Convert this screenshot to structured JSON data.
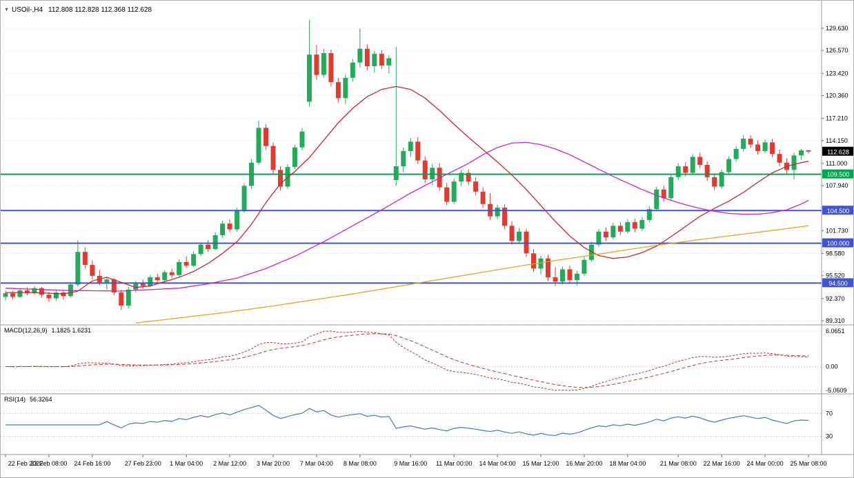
{
  "window": {
    "dropdown_icon": "▼",
    "symbol_label": "USOil-,H4",
    "ohlc_label": "112.808 112.828 112.368 112.628"
  },
  "chart_data": {
    "type": "candlestick",
    "symbol": "USOil-",
    "timeframe": "H4",
    "current_candle": {
      "open": 112.808,
      "high": 112.828,
      "low": 112.368,
      "close": 112.628
    },
    "price_axis": {
      "min_visible": 88.74,
      "max_visible": 133.43,
      "ticks": [
        {
          "value": 129.63,
          "label": "129.630"
        },
        {
          "value": 126.57,
          "label": "126.570"
        },
        {
          "value": 123.42,
          "label": "123.420"
        },
        {
          "value": 120.36,
          "label": "120.360"
        },
        {
          "value": 117.21,
          "label": "117.210"
        },
        {
          "value": 114.15,
          "label": "114.150"
        },
        {
          "value": 111.0,
          "label": "111.000"
        },
        {
          "value": 107.94,
          "label": "107.940"
        },
        {
          "value": 104.88,
          "label": ""
        },
        {
          "value": 101.73,
          "label": "101.730"
        },
        {
          "value": 98.58,
          "label": "98.580"
        },
        {
          "value": 95.52,
          "label": "95.520"
        },
        {
          "value": 92.37,
          "label": "92.370"
        },
        {
          "value": 89.31,
          "label": "89.310"
        }
      ]
    },
    "hlines": [
      {
        "value": 109.5,
        "label": "109.500",
        "color": "#00a651",
        "name": "support-line-109500"
      },
      {
        "value": 104.5,
        "label": "104.500",
        "color": "#4053d3",
        "name": "support-line-104500"
      },
      {
        "value": 100.0,
        "label": "100.000",
        "color": "#4053d3",
        "name": "support-line-100000"
      },
      {
        "value": 94.5,
        "label": "94.500",
        "color": "#4053d3",
        "name": "support-line-94500"
      }
    ],
    "current_price": {
      "value": 112.628,
      "label": "112.628",
      "color": "#000000"
    },
    "candles": [
      [
        92.6,
        93.5,
        92.1,
        93.1
      ],
      [
        93.1,
        93.4,
        92.3,
        92.6
      ],
      [
        92.6,
        93.8,
        92.4,
        93.5
      ],
      [
        93.5,
        93.9,
        92.8,
        93.1
      ],
      [
        93.1,
        94.1,
        92.9,
        93.8
      ],
      [
        93.8,
        94.0,
        92.5,
        92.9
      ],
      [
        92.9,
        93.3,
        91.9,
        92.4
      ],
      [
        92.4,
        93.6,
        92.1,
        93.2
      ],
      [
        93.2,
        93.5,
        92.2,
        92.7
      ],
      [
        92.7,
        94.6,
        92.5,
        94.3
      ],
      [
        94.3,
        100.4,
        94.0,
        98.8
      ],
      [
        98.8,
        99.4,
        96.5,
        97.0
      ],
      [
        97.0,
        97.6,
        95.0,
        95.5
      ],
      [
        95.5,
        96.3,
        94.2,
        94.6
      ],
      [
        94.6,
        95.4,
        93.6,
        95.0
      ],
      [
        95.0,
        95.2,
        92.8,
        93.2
      ],
      [
        93.2,
        93.6,
        90.8,
        91.4
      ],
      [
        91.4,
        94.0,
        91.0,
        93.6
      ],
      [
        93.6,
        94.8,
        93.2,
        94.4
      ],
      [
        94.4,
        95.0,
        93.7,
        94.1
      ],
      [
        94.1,
        95.6,
        93.9,
        95.3
      ],
      [
        95.3,
        95.8,
        94.5,
        94.9
      ],
      [
        94.9,
        96.3,
        94.6,
        96.0
      ],
      [
        96.0,
        96.5,
        95.2,
        95.6
      ],
      [
        95.6,
        97.8,
        95.4,
        97.4
      ],
      [
        97.4,
        98.2,
        96.6,
        96.9
      ],
      [
        96.9,
        98.9,
        96.7,
        98.5
      ],
      [
        98.5,
        100.1,
        98.2,
        99.8
      ],
      [
        99.8,
        100.4,
        98.8,
        99.2
      ],
      [
        99.2,
        101.5,
        99.0,
        101.1
      ],
      [
        101.1,
        103.1,
        100.7,
        102.7
      ],
      [
        102.7,
        103.3,
        101.5,
        101.9
      ],
      [
        101.9,
        104.9,
        101.6,
        104.5
      ],
      [
        104.5,
        108.3,
        104.2,
        107.9
      ],
      [
        107.9,
        111.6,
        107.5,
        111.1
      ],
      [
        111.1,
        116.9,
        110.8,
        115.9
      ],
      [
        115.9,
        116.4,
        112.9,
        113.4
      ],
      [
        113.4,
        113.9,
        109.6,
        110.1
      ],
      [
        110.1,
        110.6,
        107.3,
        107.8
      ],
      [
        107.8,
        110.9,
        107.5,
        110.5
      ],
      [
        110.5,
        113.6,
        110.2,
        113.2
      ],
      [
        113.2,
        115.9,
        112.8,
        115.4
      ],
      [
        119.5,
        130.8,
        118.8,
        126.0
      ],
      [
        126.0,
        127.3,
        122.5,
        123.2
      ],
      [
        123.2,
        126.8,
        122.8,
        126.2
      ],
      [
        126.2,
        126.7,
        121.6,
        122.2
      ],
      [
        122.2,
        122.8,
        119.4,
        120.0
      ],
      [
        120.0,
        123.3,
        119.2,
        122.8
      ],
      [
        122.8,
        125.4,
        122.3,
        124.9
      ],
      [
        124.9,
        129.6,
        124.2,
        126.8
      ],
      [
        126.8,
        127.4,
        123.8,
        124.4
      ],
      [
        124.4,
        126.5,
        123.5,
        126.1
      ],
      [
        126.1,
        126.6,
        124.0,
        124.5
      ],
      [
        124.5,
        125.9,
        123.4,
        125.5
      ],
      [
        108.7,
        127.1,
        107.9,
        110.6
      ],
      [
        110.6,
        113.2,
        109.8,
        112.7
      ],
      [
        112.7,
        114.5,
        111.9,
        114.0
      ],
      [
        114.0,
        114.6,
        110.9,
        111.4
      ],
      [
        111.4,
        112.0,
        108.3,
        108.8
      ],
      [
        108.8,
        110.9,
        108.0,
        110.4
      ],
      [
        110.4,
        111.0,
        107.2,
        107.7
      ],
      [
        107.7,
        108.3,
        105.2,
        105.7
      ],
      [
        105.7,
        108.9,
        105.4,
        108.5
      ],
      [
        108.5,
        110.1,
        107.9,
        109.7
      ],
      [
        109.7,
        110.2,
        108.0,
        108.5
      ],
      [
        108.5,
        109.1,
        106.6,
        107.1
      ],
      [
        107.1,
        107.7,
        104.9,
        105.4
      ],
      [
        105.4,
        106.9,
        103.2,
        103.7
      ],
      [
        103.7,
        105.3,
        103.3,
        104.9
      ],
      [
        104.9,
        105.4,
        101.9,
        102.4
      ],
      [
        102.4,
        103.0,
        99.8,
        100.3
      ],
      [
        100.3,
        102.1,
        99.9,
        101.6
      ],
      [
        101.6,
        102.0,
        98.1,
        98.6
      ],
      [
        98.6,
        99.2,
        96.0,
        96.5
      ],
      [
        96.5,
        98.3,
        95.7,
        97.9
      ],
      [
        97.9,
        98.4,
        94.8,
        95.3
      ],
      [
        95.3,
        96.7,
        94.1,
        94.7
      ],
      [
        94.7,
        96.8,
        94.3,
        96.4
      ],
      [
        96.4,
        96.9,
        94.4,
        94.9
      ],
      [
        94.9,
        96.2,
        94.2,
        95.8
      ],
      [
        95.8,
        98.1,
        95.5,
        97.7
      ],
      [
        97.7,
        100.2,
        97.4,
        99.8
      ],
      [
        99.8,
        102.0,
        99.5,
        101.6
      ],
      [
        101.6,
        102.2,
        100.3,
        100.8
      ],
      [
        100.8,
        102.8,
        100.5,
        102.4
      ],
      [
        102.4,
        102.9,
        101.1,
        101.6
      ],
      [
        101.6,
        103.3,
        101.3,
        102.9
      ],
      [
        102.9,
        103.4,
        101.5,
        102.0
      ],
      [
        102.0,
        103.6,
        101.7,
        103.2
      ],
      [
        103.2,
        105.1,
        102.9,
        104.7
      ],
      [
        104.7,
        107.8,
        104.4,
        107.4
      ],
      [
        107.4,
        107.9,
        105.7,
        106.2
      ],
      [
        106.2,
        109.5,
        105.9,
        109.1
      ],
      [
        109.1,
        111.0,
        108.7,
        110.6
      ],
      [
        110.6,
        111.2,
        109.2,
        109.7
      ],
      [
        109.7,
        112.3,
        109.4,
        111.9
      ],
      [
        111.9,
        112.5,
        110.3,
        110.8
      ],
      [
        110.8,
        111.3,
        108.6,
        109.1
      ],
      [
        109.1,
        109.6,
        107.3,
        107.8
      ],
      [
        107.8,
        110.2,
        107.5,
        109.8
      ],
      [
        109.8,
        112.0,
        109.5,
        111.6
      ],
      [
        111.6,
        113.4,
        111.2,
        113.0
      ],
      [
        113.0,
        114.9,
        112.6,
        114.4
      ],
      [
        114.4,
        114.9,
        113.1,
        113.6
      ],
      [
        113.6,
        114.2,
        112.2,
        112.7
      ],
      [
        112.7,
        114.3,
        112.4,
        113.9
      ],
      [
        113.9,
        114.4,
        111.8,
        112.3
      ],
      [
        112.3,
        112.9,
        110.6,
        111.1
      ],
      [
        111.1,
        111.7,
        109.6,
        110.1
      ],
      [
        110.1,
        112.5,
        108.8,
        112.1
      ],
      [
        112.1,
        113.0,
        111.5,
        112.8
      ],
      [
        112.808,
        112.828,
        112.368,
        112.628
      ]
    ],
    "time_axis": {
      "labels": [
        {
          "i": 0,
          "text": "22 Feb 2022"
        },
        {
          "i": 6,
          "text": "23 Feb 08:00"
        },
        {
          "i": 12,
          "text": "24 Feb 16:00"
        },
        {
          "i": 19,
          "text": "27 Feb 23:00"
        },
        {
          "i": 25,
          "text": "1 Mar 04:00"
        },
        {
          "i": 31,
          "text": "2 Mar 12:00"
        },
        {
          "i": 37,
          "text": "3 Mar 20:00"
        },
        {
          "i": 43,
          "text": "7 Mar 04:00"
        },
        {
          "i": 49,
          "text": "8 Mar 08:00"
        },
        {
          "i": 56,
          "text": "9 Mar 16:00"
        },
        {
          "i": 62,
          "text": "11 Mar 00:00"
        },
        {
          "i": 68,
          "text": "14 Mar 04:00"
        },
        {
          "i": 74,
          "text": "15 Mar 12:00"
        },
        {
          "i": 80,
          "text": "16 Mar 20:00"
        },
        {
          "i": 86,
          "text": "18 Mar 04:00"
        },
        {
          "i": 93,
          "text": "21 Mar 08:00"
        },
        {
          "i": 99,
          "text": "22 Mar 16:00"
        },
        {
          "i": 105,
          "text": "24 Mar 00:00"
        },
        {
          "i": 111,
          "text": "25 Mar 08:00"
        }
      ]
    },
    "moving_averages": [
      {
        "name": "ma-fast",
        "color": "#c62828",
        "points": [
          [
            0,
            93.2
          ],
          [
            4,
            93.2
          ],
          [
            8,
            93.0
          ],
          [
            10,
            93.4
          ],
          [
            12,
            94.8
          ],
          [
            14,
            95.3
          ],
          [
            16,
            94.6
          ],
          [
            18,
            93.9
          ],
          [
            20,
            94.1
          ],
          [
            22,
            94.7
          ],
          [
            24,
            95.3
          ],
          [
            26,
            96.1
          ],
          [
            28,
            97.2
          ],
          [
            30,
            98.6
          ],
          [
            32,
            100.2
          ],
          [
            34,
            102.6
          ],
          [
            36,
            105.6
          ],
          [
            38,
            108.2
          ],
          [
            40,
            109.9
          ],
          [
            42,
            111.8
          ],
          [
            44,
            114.2
          ],
          [
            46,
            116.6
          ],
          [
            48,
            118.6
          ],
          [
            50,
            120.2
          ],
          [
            52,
            121.2
          ],
          [
            54,
            121.6
          ],
          [
            56,
            121.2
          ],
          [
            58,
            120.0
          ],
          [
            60,
            118.3
          ],
          [
            62,
            116.4
          ],
          [
            64,
            114.6
          ],
          [
            66,
            112.9
          ],
          [
            68,
            111.2
          ],
          [
            70,
            109.4
          ],
          [
            72,
            107.4
          ],
          [
            74,
            105.2
          ],
          [
            76,
            103.0
          ],
          [
            78,
            101.0
          ],
          [
            80,
            99.4
          ],
          [
            82,
            98.3
          ],
          [
            84,
            97.9
          ],
          [
            86,
            98.1
          ],
          [
            88,
            98.7
          ],
          [
            90,
            99.6
          ],
          [
            92,
            100.9
          ],
          [
            94,
            102.3
          ],
          [
            96,
            103.7
          ],
          [
            98,
            104.8
          ],
          [
            100,
            105.8
          ],
          [
            102,
            107.0
          ],
          [
            104,
            108.4
          ],
          [
            106,
            109.7
          ],
          [
            108,
            110.6
          ],
          [
            110,
            111.1
          ],
          [
            111,
            111.3
          ]
        ]
      },
      {
        "name": "ma-medium",
        "color": "#cc22cc",
        "points": [
          [
            0,
            93.8
          ],
          [
            8,
            93.5
          ],
          [
            16,
            93.4
          ],
          [
            24,
            93.8
          ],
          [
            28,
            94.4
          ],
          [
            32,
            95.2
          ],
          [
            36,
            96.5
          ],
          [
            40,
            98.2
          ],
          [
            44,
            100.2
          ],
          [
            48,
            102.4
          ],
          [
            52,
            104.6
          ],
          [
            56,
            106.9
          ],
          [
            60,
            109.0
          ],
          [
            64,
            111.0
          ],
          [
            66,
            112.2
          ],
          [
            68,
            113.2
          ],
          [
            70,
            113.8
          ],
          [
            72,
            113.9
          ],
          [
            74,
            113.6
          ],
          [
            76,
            113.0
          ],
          [
            78,
            112.2
          ],
          [
            80,
            111.2
          ],
          [
            82,
            110.2
          ],
          [
            84,
            109.2
          ],
          [
            86,
            108.3
          ],
          [
            88,
            107.4
          ],
          [
            90,
            106.6
          ],
          [
            92,
            105.9
          ],
          [
            94,
            105.3
          ],
          [
            96,
            104.8
          ],
          [
            98,
            104.4
          ],
          [
            100,
            104.1
          ],
          [
            102,
            104.0
          ],
          [
            104,
            104.0
          ],
          [
            106,
            104.2
          ],
          [
            108,
            104.6
          ],
          [
            110,
            105.4
          ],
          [
            111,
            105.9
          ]
        ]
      },
      {
        "name": "ma-slow",
        "color": "#e5a423",
        "points": [
          [
            18,
            89.0
          ],
          [
            24,
            89.7
          ],
          [
            30,
            90.4
          ],
          [
            36,
            91.2
          ],
          [
            42,
            92.1
          ],
          [
            48,
            93.0
          ],
          [
            54,
            94.0
          ],
          [
            60,
            95.0
          ],
          [
            66,
            96.0
          ],
          [
            72,
            97.0
          ],
          [
            78,
            97.9
          ],
          [
            84,
            98.8
          ],
          [
            90,
            99.7
          ],
          [
            96,
            100.5
          ],
          [
            100,
            101.0
          ],
          [
            104,
            101.5
          ],
          [
            108,
            102.0
          ],
          [
            111,
            102.4
          ]
        ]
      }
    ],
    "indicators": {
      "macd": {
        "title": "MACD(12,26,9)",
        "values_text": "1.1825 1.6231",
        "fast": 12,
        "slow": 26,
        "signal": 9,
        "axis_labels": [
          "6.0651",
          "0.00",
          "-5.0609"
        ],
        "color": "#c23128"
      },
      "rsi": {
        "title": "RSI(14)",
        "value_text": "56.3264",
        "period": 14,
        "levels": [
          70,
          30
        ],
        "color": "#3f7cba"
      }
    },
    "style": {
      "bull": "#22ac5a",
      "bear": "#e23a2e",
      "grid": "#dcdcdc",
      "axis_text": "#000000",
      "separator": "#9a9a9a",
      "level_dotted": "#b9b9b9",
      "background": "#ffffff"
    }
  }
}
